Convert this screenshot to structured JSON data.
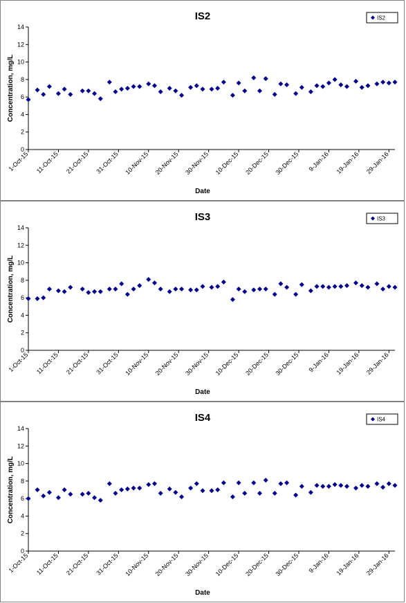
{
  "chart_data": [
    {
      "type": "scatter",
      "title": "IS2",
      "xlabel": "Date",
      "ylabel": "Concentration, mg/L",
      "ylim": [
        0,
        14
      ],
      "yticks": [
        "0",
        "2",
        "4",
        "6",
        "8",
        "10",
        "12",
        "14"
      ],
      "xlim": [
        "2015-10-01",
        "2016-01-31"
      ],
      "xticks": [
        "1-Oct-15",
        "11-Oct-15",
        "21-Oct-15",
        "31-Oct-15",
        "10-Nov-15",
        "20-Nov-15",
        "30-Nov-15",
        "10-Dec-15",
        "20-Dec-15",
        "30-Dec-15",
        "9-Jan-16",
        "19-Jan-16",
        "29-Jan-16"
      ],
      "legend": "top-right",
      "grid": false,
      "color": "#00008B",
      "series": [
        {
          "name": "IS2",
          "x": [
            "2015-10-01",
            "2015-10-04",
            "2015-10-06",
            "2015-10-08",
            "2015-10-11",
            "2015-10-13",
            "2015-10-15",
            "2015-10-19",
            "2015-10-21",
            "2015-10-23",
            "2015-10-25",
            "2015-10-28",
            "2015-10-30",
            "2015-11-01",
            "2015-11-03",
            "2015-11-05",
            "2015-11-07",
            "2015-11-10",
            "2015-11-12",
            "2015-11-14",
            "2015-11-17",
            "2015-11-19",
            "2015-11-21",
            "2015-11-24",
            "2015-11-26",
            "2015-11-28",
            "2015-12-01",
            "2015-12-03",
            "2015-12-05",
            "2015-12-08",
            "2015-12-10",
            "2015-12-12",
            "2015-12-15",
            "2015-12-17",
            "2015-12-19",
            "2015-12-22",
            "2015-12-24",
            "2015-12-26",
            "2015-12-29",
            "2015-12-31",
            "2016-01-03",
            "2016-01-05",
            "2016-01-07",
            "2016-01-09",
            "2016-01-11",
            "2016-01-13",
            "2016-01-15",
            "2016-01-18",
            "2016-01-20",
            "2016-01-22",
            "2016-01-25",
            "2016-01-27",
            "2016-01-29",
            "2016-01-31"
          ],
          "y": [
            5.7,
            6.8,
            6.3,
            7.2,
            6.4,
            6.9,
            6.3,
            6.7,
            6.7,
            6.4,
            5.8,
            7.7,
            6.6,
            6.9,
            7.0,
            7.2,
            7.2,
            7.5,
            7.3,
            6.6,
            7.0,
            6.7,
            6.2,
            7.1,
            7.3,
            6.9,
            6.9,
            7.0,
            7.7,
            6.2,
            7.6,
            6.7,
            8.2,
            6.7,
            8.1,
            6.3,
            7.5,
            7.4,
            6.4,
            7.1,
            6.6,
            7.3,
            7.2,
            7.6,
            8.0,
            7.4,
            7.2,
            7.8,
            7.1,
            7.3,
            7.5,
            7.7,
            7.6,
            7.7
          ]
        }
      ]
    },
    {
      "type": "scatter",
      "title": "IS3",
      "xlabel": "Date",
      "ylabel": "Concentration, mg/L",
      "ylim": [
        0,
        14
      ],
      "yticks": [
        "0",
        "2",
        "4",
        "6",
        "8",
        "10",
        "12",
        "14"
      ],
      "xlim": [
        "2015-10-01",
        "2016-01-31"
      ],
      "xticks": [
        "1-Oct-15",
        "11-Oct-15",
        "21-Oct-15",
        "31-Oct-15",
        "10-Nov-15",
        "20-Nov-15",
        "30-Nov-15",
        "10-Dec-15",
        "20-Dec-15",
        "30-Dec-15",
        "9-Jan-16",
        "19-Jan-16",
        "29-Jan-16"
      ],
      "legend": "top-right",
      "grid": false,
      "color": "#00008B",
      "series": [
        {
          "name": "IS3",
          "x": [
            "2015-10-01",
            "2015-10-04",
            "2015-10-06",
            "2015-10-08",
            "2015-10-11",
            "2015-10-13",
            "2015-10-15",
            "2015-10-19",
            "2015-10-21",
            "2015-10-23",
            "2015-10-25",
            "2015-10-28",
            "2015-10-30",
            "2015-11-01",
            "2015-11-03",
            "2015-11-05",
            "2015-11-07",
            "2015-11-10",
            "2015-11-12",
            "2015-11-14",
            "2015-11-17",
            "2015-11-19",
            "2015-11-21",
            "2015-11-24",
            "2015-11-26",
            "2015-11-28",
            "2015-12-01",
            "2015-12-03",
            "2015-12-05",
            "2015-12-08",
            "2015-12-10",
            "2015-12-12",
            "2015-12-15",
            "2015-12-17",
            "2015-12-19",
            "2015-12-22",
            "2015-12-24",
            "2015-12-26",
            "2015-12-29",
            "2015-12-31",
            "2016-01-03",
            "2016-01-05",
            "2016-01-07",
            "2016-01-09",
            "2016-01-11",
            "2016-01-13",
            "2016-01-15",
            "2016-01-18",
            "2016-01-20",
            "2016-01-22",
            "2016-01-25",
            "2016-01-27",
            "2016-01-29",
            "2016-01-31"
          ],
          "y": [
            5.9,
            5.9,
            6.0,
            7.0,
            6.8,
            6.7,
            7.2,
            7.0,
            6.6,
            6.7,
            6.7,
            7.0,
            7.0,
            7.6,
            6.4,
            7.0,
            7.4,
            8.1,
            7.7,
            7.0,
            6.7,
            7.0,
            7.0,
            6.9,
            6.9,
            7.3,
            7.2,
            7.3,
            7.8,
            5.8,
            7.0,
            6.7,
            6.9,
            7.0,
            7.0,
            6.4,
            7.6,
            7.2,
            6.4,
            7.5,
            6.8,
            7.3,
            7.3,
            7.2,
            7.3,
            7.3,
            7.4,
            7.7,
            7.4,
            7.2,
            7.6,
            7.0,
            7.3,
            7.2
          ]
        }
      ]
    },
    {
      "type": "scatter",
      "title": "IS4",
      "xlabel": "Date",
      "ylabel": "Concentration, mg/L",
      "ylim": [
        0,
        14
      ],
      "yticks": [
        "0",
        "2",
        "4",
        "6",
        "8",
        "10",
        "12",
        "14"
      ],
      "xlim": [
        "2015-10-01",
        "2016-01-31"
      ],
      "xticks": [
        "1-Oct-15",
        "11-Oct-15",
        "21-Oct-15",
        "31-Oct-15",
        "10-Nov-15",
        "20-Nov-15",
        "30-Nov-15",
        "10-Dec-15",
        "20-Dec-15",
        "30-Dec-15",
        "9-Jan-16",
        "19-Jan-16",
        "29-Jan-16"
      ],
      "legend": "top-right",
      "grid": false,
      "color": "#00008B",
      "series": [
        {
          "name": "IS4",
          "x": [
            "2015-10-01",
            "2015-10-04",
            "2015-10-06",
            "2015-10-08",
            "2015-10-11",
            "2015-10-13",
            "2015-10-15",
            "2015-10-19",
            "2015-10-21",
            "2015-10-23",
            "2015-10-25",
            "2015-10-28",
            "2015-10-30",
            "2015-11-01",
            "2015-11-03",
            "2015-11-05",
            "2015-11-07",
            "2015-11-10",
            "2015-11-12",
            "2015-11-14",
            "2015-11-17",
            "2015-11-19",
            "2015-11-21",
            "2015-11-24",
            "2015-11-26",
            "2015-11-28",
            "2015-12-01",
            "2015-12-03",
            "2015-12-05",
            "2015-12-08",
            "2015-12-10",
            "2015-12-12",
            "2015-12-15",
            "2015-12-17",
            "2015-12-19",
            "2015-12-22",
            "2015-12-24",
            "2015-12-26",
            "2015-12-29",
            "2015-12-31",
            "2016-01-03",
            "2016-01-05",
            "2016-01-07",
            "2016-01-09",
            "2016-01-11",
            "2016-01-13",
            "2016-01-15",
            "2016-01-18",
            "2016-01-20",
            "2016-01-22",
            "2016-01-25",
            "2016-01-27",
            "2016-01-29",
            "2016-01-31"
          ],
          "y": [
            6.0,
            7.0,
            6.3,
            6.7,
            6.1,
            7.0,
            6.5,
            6.5,
            6.6,
            6.1,
            5.8,
            7.7,
            6.6,
            7.0,
            7.1,
            7.2,
            7.2,
            7.6,
            7.7,
            6.6,
            7.1,
            6.7,
            6.2,
            7.2,
            7.7,
            6.9,
            6.9,
            7.0,
            7.8,
            6.2,
            7.8,
            6.6,
            7.8,
            6.6,
            8.1,
            6.6,
            7.7,
            7.8,
            6.4,
            7.4,
            6.7,
            7.5,
            7.4,
            7.4,
            7.6,
            7.5,
            7.4,
            7.2,
            7.5,
            7.4,
            7.7,
            7.3,
            7.7,
            7.5
          ]
        }
      ]
    }
  ]
}
